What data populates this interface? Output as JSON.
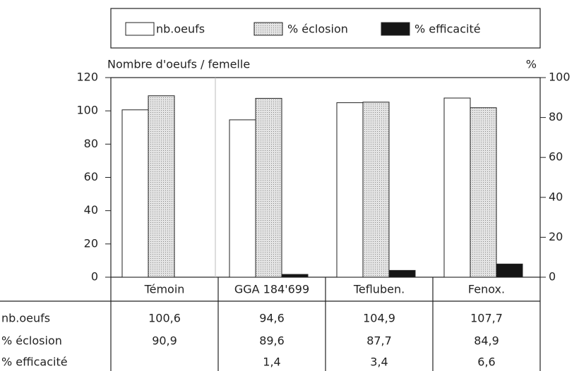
{
  "chart_data": {
    "type": "bar",
    "categories": [
      "Témoin",
      "GGA 184'699",
      "Tefluben.",
      "Fenox."
    ],
    "ylabel": "Nombre d'oeufs / femelle",
    "y2label": "%",
    "ylim": [
      0,
      120
    ],
    "yticks": [
      0,
      20,
      40,
      60,
      80,
      100,
      120
    ],
    "y2lim": [
      0,
      100
    ],
    "y2ticks": [
      0,
      20,
      40,
      60,
      80,
      100
    ],
    "series": [
      {
        "name": "nb.oeufs",
        "color": "#ffffff",
        "values": [
          100.6,
          94.6,
          104.9,
          107.7
        ],
        "value_labels": [
          "100,6",
          "94,6",
          "104,9",
          "107,7"
        ]
      },
      {
        "name": "% éclosion",
        "color": "#e4e4e4",
        "axis": "y2",
        "values": [
          90.9,
          89.6,
          87.7,
          84.9
        ],
        "value_labels": [
          "90,9",
          "89,6",
          "87,7",
          "84,9"
        ]
      },
      {
        "name": "% efficacité",
        "color": "#151515",
        "axis": "y2",
        "values": [
          null,
          1.4,
          3.4,
          6.6
        ],
        "value_labels": [
          null,
          "1,4",
          "3,4",
          "6,6"
        ]
      }
    ]
  }
}
